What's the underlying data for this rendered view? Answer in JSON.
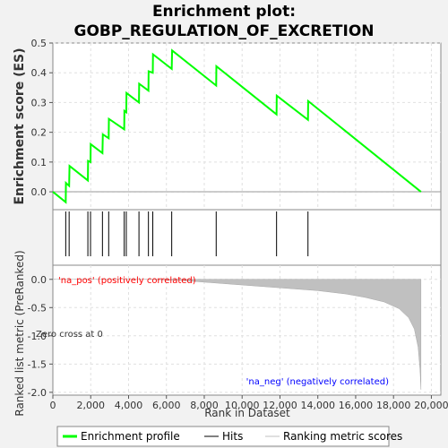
{
  "chart_data": {
    "type": "line",
    "title_line1": "Enrichment plot:",
    "title_line2": "GOBP_REGULATION_OF_EXCRETION",
    "top_panel": {
      "ylabel": "Enrichment score (ES)",
      "ylim": [
        -0.06,
        0.5
      ],
      "yticks": [
        0.0,
        0.1,
        0.2,
        0.3,
        0.4,
        0.5
      ],
      "ytick_labels": [
        "0.0",
        "0.1",
        "0.2",
        "0.3",
        "0.4",
        "0.5"
      ],
      "grid": true,
      "series": [
        {
          "name": "Enrichment profile",
          "color": "#00ff00",
          "x": [
            0,
            680,
            690,
            860,
            880,
            1850,
            1860,
            1990,
            2000,
            2620,
            2640,
            2950,
            2960,
            3770,
            3780,
            3880,
            3890,
            4550,
            4560,
            5050,
            5060,
            5280,
            5290,
            6280,
            6300,
            8630,
            8640,
            11820,
            11830,
            13480,
            13490,
            19450
          ],
          "y": [
            0.0,
            -0.035,
            0.03,
            0.02,
            0.087,
            0.038,
            0.104,
            0.1,
            0.16,
            0.13,
            0.193,
            0.18,
            0.245,
            0.21,
            0.272,
            0.267,
            0.332,
            0.3,
            0.363,
            0.34,
            0.405,
            0.4,
            0.462,
            0.413,
            0.475,
            0.357,
            0.422,
            0.26,
            0.323,
            0.242,
            0.305,
            0.0
          ]
        }
      ]
    },
    "hits": [
      680,
      860,
      1850,
      1990,
      2620,
      2950,
      3770,
      3880,
      4550,
      5050,
      5280,
      6280,
      8630,
      11820,
      13480
    ],
    "bottom_panel": {
      "ylabel": "Ranked list metric (PreRanked)",
      "xlabel": "Rank in Dataset",
      "xlim": [
        0,
        20500
      ],
      "ylim": [
        -2.05,
        0.25
      ],
      "xticks": [
        0,
        2000,
        4000,
        6000,
        8000,
        10000,
        12000,
        14000,
        16000,
        18000,
        20000
      ],
      "xtick_labels": [
        "0",
        "2,000",
        "4,000",
        "6,000",
        "8,000",
        "10,000",
        "12,000",
        "14,000",
        "16,000",
        "18,000",
        "20,000"
      ],
      "yticks": [
        0.0,
        -0.5,
        -1.0,
        -1.5,
        -2.0
      ],
      "ytick_labels": [
        "0.0",
        "-0.5",
        "-1.0",
        "-1.5",
        "-2.0"
      ],
      "metric_x": [
        0,
        5000,
        6800,
        8000,
        10000,
        12000,
        14000,
        15500,
        16500,
        17500,
        18300,
        18800,
        19100,
        19300,
        19400,
        19450
      ],
      "metric_y": [
        0.0,
        0.0,
        -0.02,
        -0.05,
        -0.1,
        -0.15,
        -0.2,
        -0.26,
        -0.32,
        -0.4,
        -0.52,
        -0.68,
        -0.88,
        -1.2,
        -1.6,
        -1.95
      ],
      "zero_cross_label": "Zero cross at 0",
      "pos_label": "'na_pos' (positively correlated)",
      "neg_label": "'na_neg' (negatively correlated)",
      "pos_color": "#ff0000",
      "neg_color": "#0000ff",
      "color_bands": [
        {
          "from": 0,
          "to": 6800,
          "color": "#d8d8f8"
        },
        {
          "from": 6800,
          "to": 10100,
          "color": "#c4c4f4"
        },
        {
          "from": 10100,
          "to": 12400,
          "color": "#8c8cf0"
        },
        {
          "from": 12400,
          "to": 18200,
          "color": "#6a5ae8"
        },
        {
          "from": 18200,
          "to": 19450,
          "color": "#2a0ad0"
        }
      ]
    },
    "legend": [
      {
        "label": "Enrichment profile",
        "color": "#00ff00"
      },
      {
        "label": "Hits",
        "color": "#000000"
      },
      {
        "label": "Ranking metric scores",
        "color": "#c0c0c0"
      }
    ]
  }
}
